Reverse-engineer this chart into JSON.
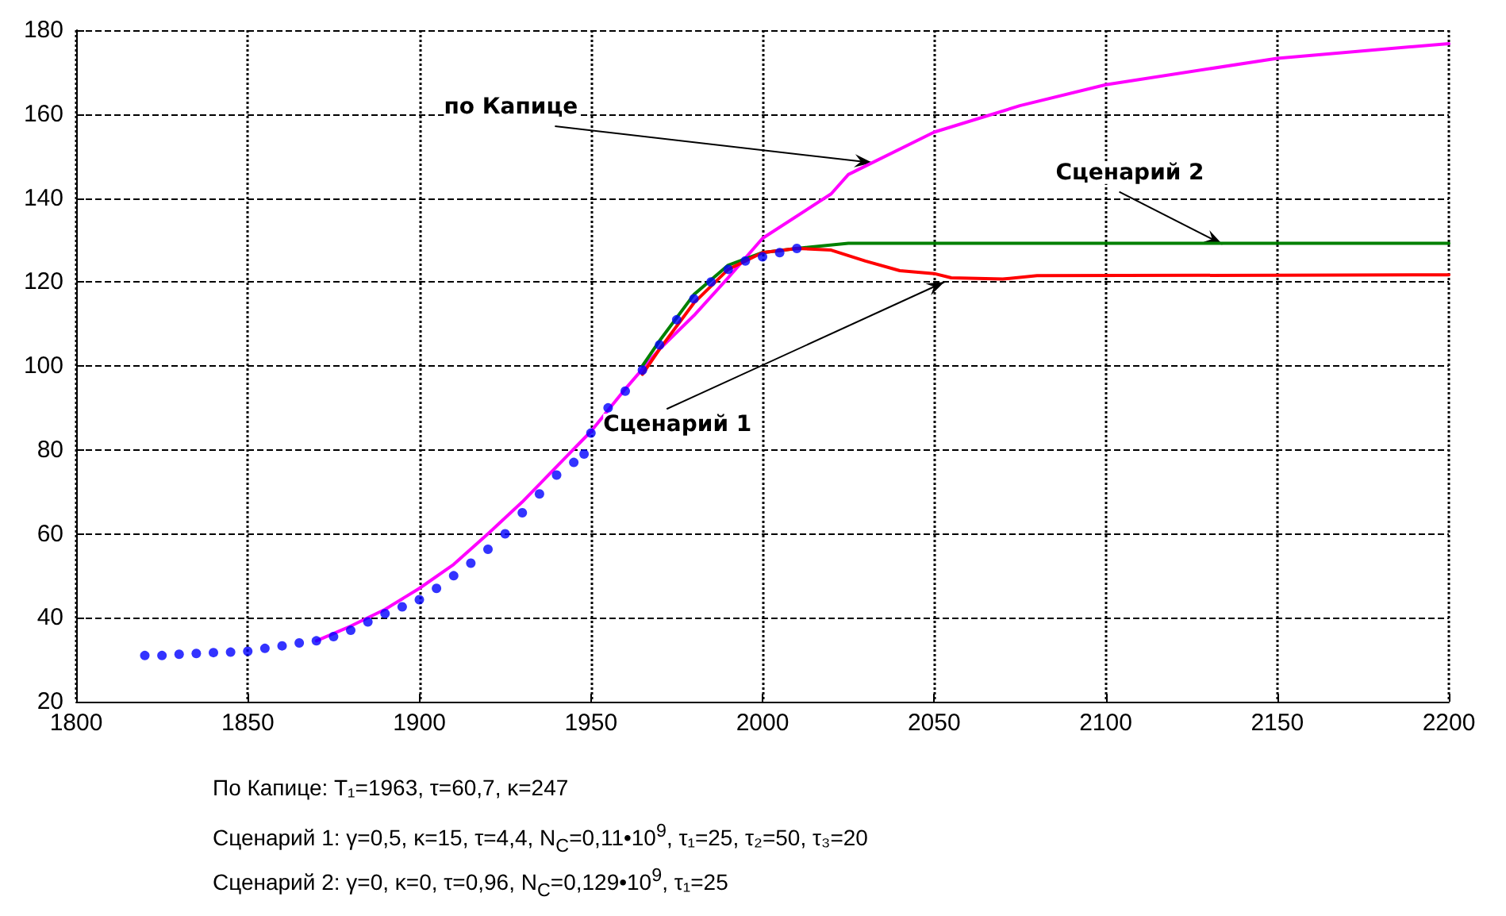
{
  "chart_data": {
    "type": "line",
    "xlim": [
      1800,
      2200
    ],
    "xticks": [
      1800,
      1850,
      1900,
      1950,
      2000,
      2050,
      2100,
      2150,
      2200
    ],
    "ylim": [
      20,
      180
    ],
    "yticks": [
      20,
      40,
      60,
      80,
      100,
      120,
      140,
      160,
      180
    ],
    "grid": true,
    "line_style": "solid",
    "series": [
      {
        "type": "scatter",
        "color": "#0000ff",
        "x": [
          1820,
          1825,
          1830,
          1835,
          1840,
          1845,
          1850,
          1855,
          1860,
          1865,
          1870,
          1875,
          1880,
          1885,
          1890,
          1895,
          1900,
          1905,
          1910,
          1915,
          1920,
          1925,
          1930,
          1935,
          1940,
          1945,
          1948,
          1950,
          1955,
          1960,
          1965,
          1970,
          1975,
          1980,
          1985,
          1990,
          1995,
          2000,
          2005,
          2010
        ],
        "values": [
          31,
          31,
          31.3,
          31.5,
          31.7,
          31.8,
          32,
          32.7,
          33.3,
          34,
          34.5,
          35.5,
          37,
          39,
          41,
          42.6,
          44.3,
          47,
          50,
          53,
          56.3,
          60,
          65,
          69.5,
          74,
          77,
          79,
          84,
          90,
          94,
          99,
          105,
          111,
          116,
          120,
          123,
          125,
          126,
          127,
          128
        ]
      },
      {
        "color": "#ff00ff",
        "x": [
          1870,
          1880,
          1890,
          1900,
          1910,
          1920,
          1930,
          1940,
          1950,
          1960,
          1970,
          1980,
          1990,
          2000,
          2020,
          2025,
          2050,
          2075,
          2100,
          2150,
          2200
        ],
        "values": [
          34.5,
          38,
          42,
          47,
          52.7,
          60,
          67.6,
          76,
          84.4,
          94.5,
          104,
          112,
          121,
          130.4,
          141,
          145.6,
          155.7,
          162,
          167,
          173.3,
          176.8
        ]
      },
      {
        "color": "#008000",
        "x": [
          1965,
          1970,
          1980,
          1990,
          2000,
          2010,
          2025,
          2200
        ],
        "values": [
          100,
          106,
          117,
          124,
          127,
          128,
          129.2,
          129.2
        ]
      },
      {
        "color": "#ff0000",
        "x": [
          1965,
          1970,
          1980,
          1990,
          2000,
          2010,
          2020,
          2030,
          2040,
          2050,
          2055,
          2070,
          2080,
          2200
        ],
        "values": [
          98,
          104,
          115,
          123,
          127,
          128,
          127.6,
          125,
          122.7,
          122,
          121,
          120.7,
          121.5,
          121.7
        ]
      }
    ],
    "annotations": [
      {
        "text": "по Капице",
        "x": 2032,
        "y": 148.4
      },
      {
        "text": "Сценарий 2",
        "x": 2134,
        "y": 129
      },
      {
        "text": "Сценарий 1",
        "x": 2053,
        "y": 120
      },
      "По Капице: T₁=1963, τ=60,7, κ=247",
      "Сценарий 1: γ=0,5, κ=15, τ=4,4, N$_{C}$=0,11•10$^{9}$, τ₁=25, τ₂=50, τ₃=20",
      "Сценарий 2: γ=0, κ=0, τ=0,96, N$_{C}$=0,129•10$^{9}$, τ₁=25"
    ]
  }
}
